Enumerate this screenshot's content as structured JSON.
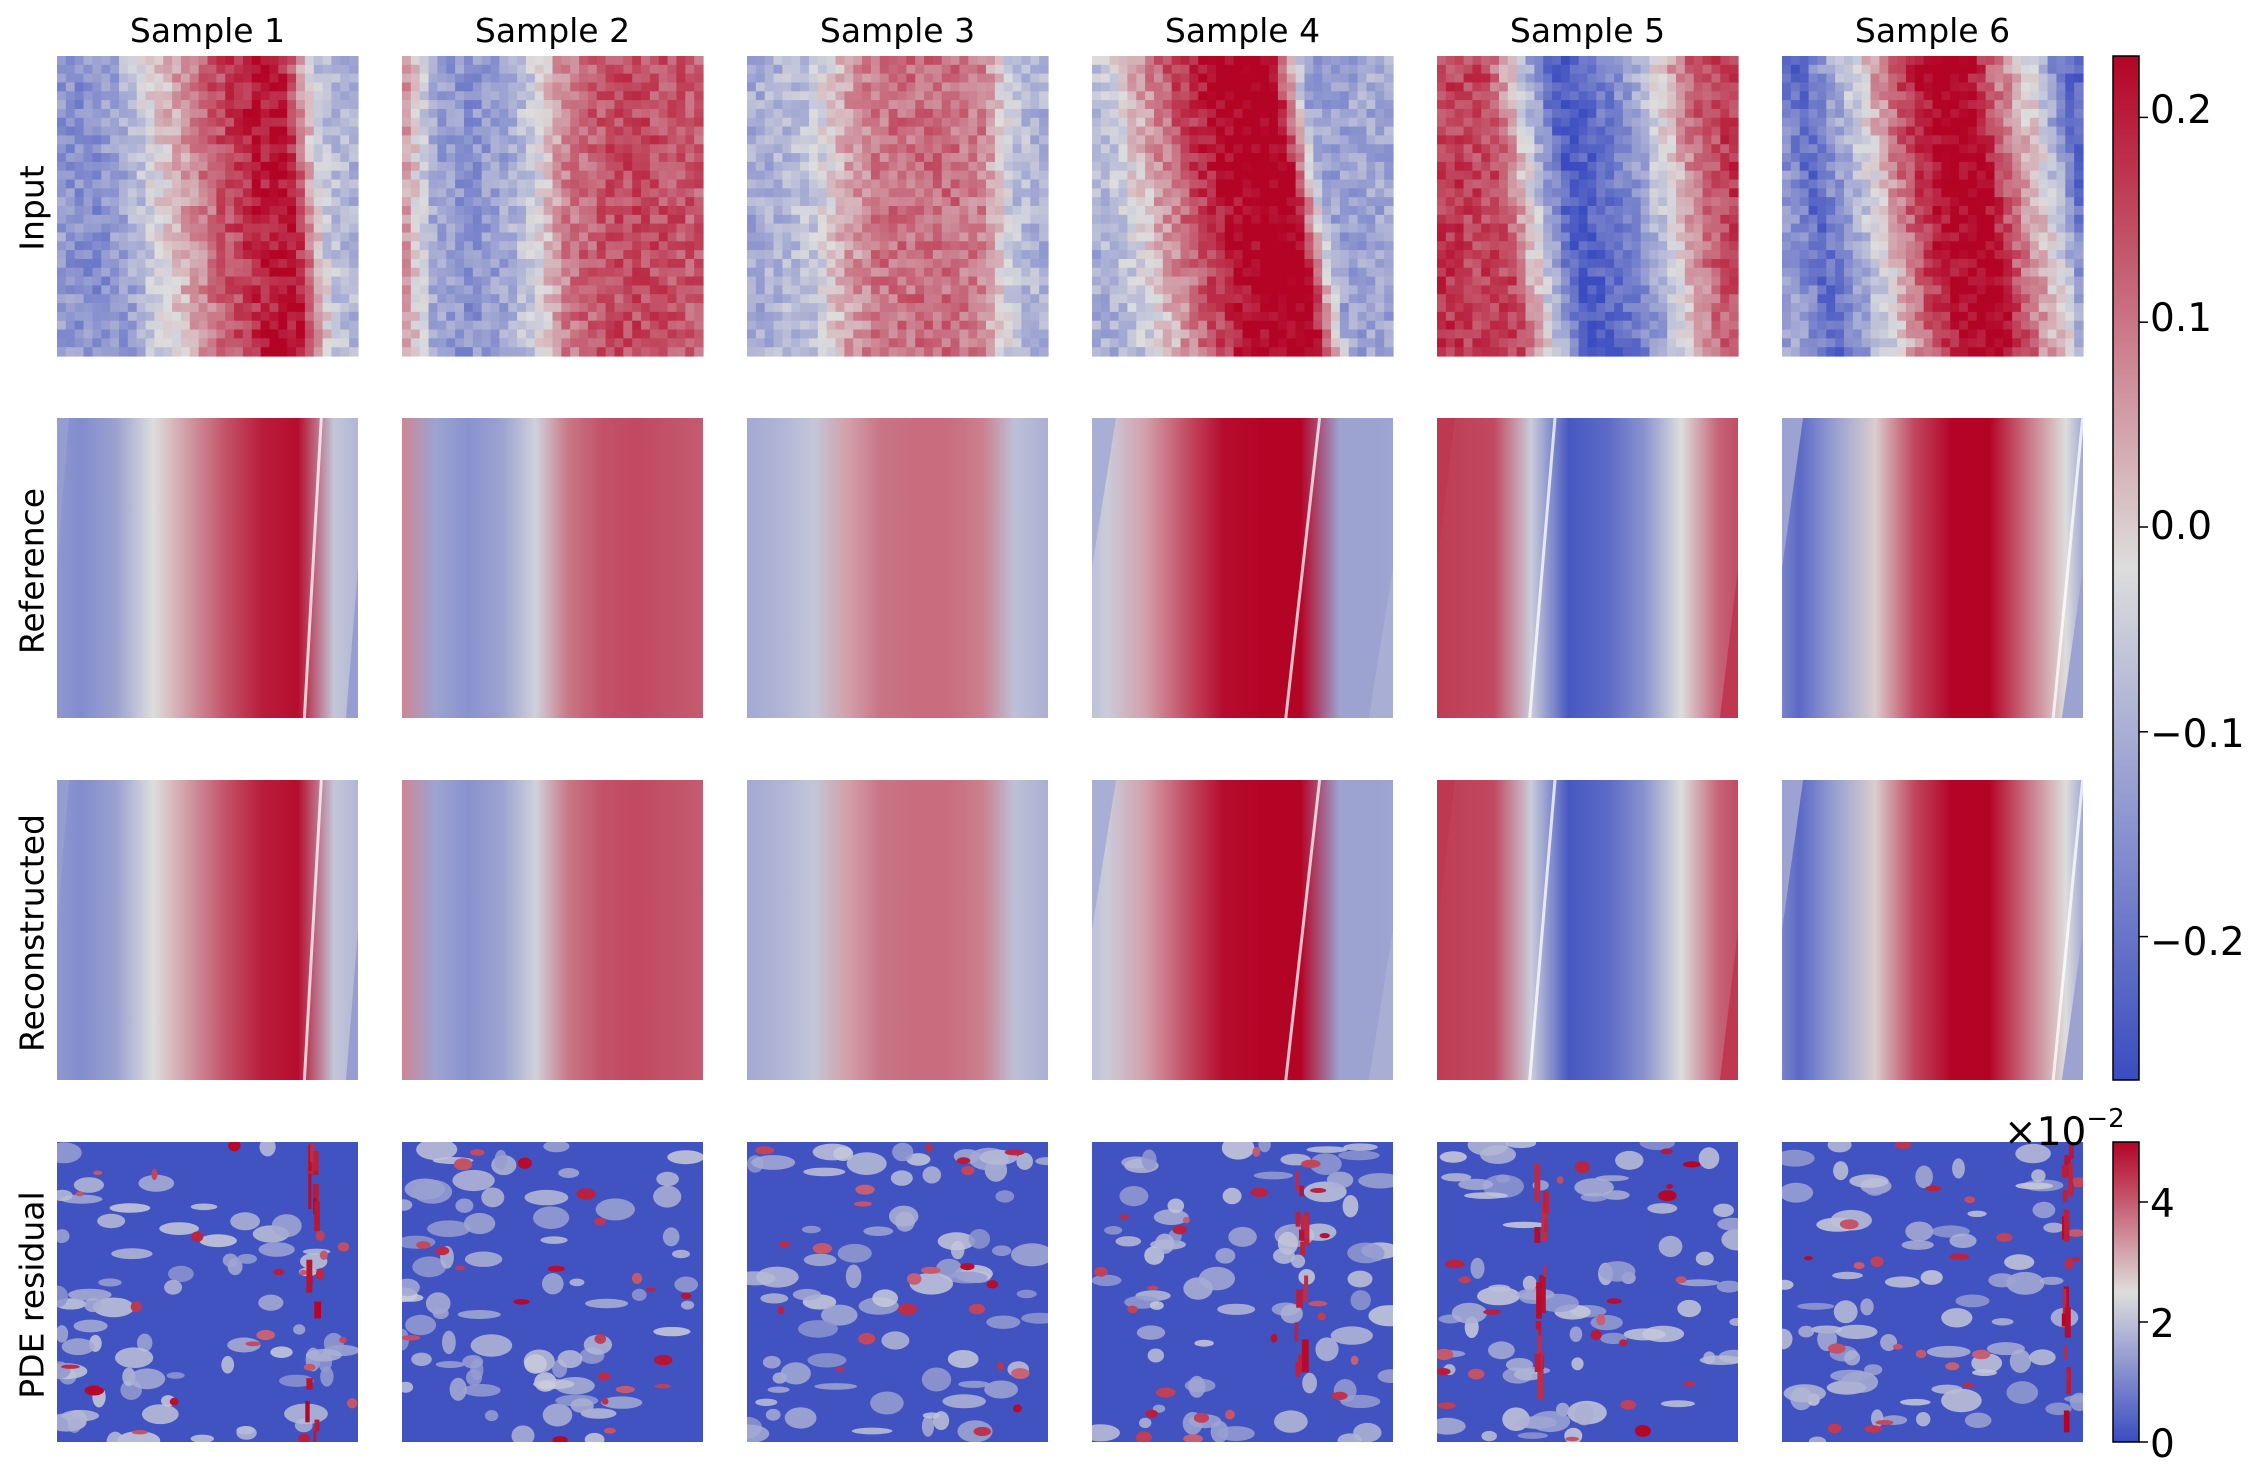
{
  "chart_data": {
    "type": "heatmap",
    "columns": [
      "Sample 1",
      "Sample 2",
      "Sample 3",
      "Sample 4",
      "Sample 5",
      "Sample 6"
    ],
    "rows": [
      "Input",
      "Reference",
      "Reconstructed",
      "PDE residual"
    ],
    "colormap": "coolwarm",
    "colors": {
      "low": "#3b4cc0",
      "mid": "#dddddd",
      "high": "#b40426"
    },
    "main_colorbar": {
      "range": [
        -0.27,
        0.23
      ],
      "ticks": [
        0.2,
        0.1,
        0.0,
        -0.1,
        -0.2
      ],
      "tick_labels": [
        "0.2",
        "0.1",
        "0.0",
        "−0.1",
        "−0.2"
      ]
    },
    "residual_colorbar": {
      "range": [
        0,
        5
      ],
      "ticks": [
        4,
        2,
        0
      ],
      "tick_labels": [
        "4",
        "2",
        "0"
      ],
      "multiplier_base": "×10",
      "multiplier_exp": "−2"
    },
    "samples": [
      {
        "profile": [
          -0.13,
          -0.16,
          -0.12,
          -0.02,
          0.06,
          0.14,
          0.2,
          0.22,
          -0.06,
          -0.1
        ],
        "shift": 0.08,
        "front": 0.85
      },
      {
        "profile": [
          0.08,
          -0.12,
          -0.15,
          -0.12,
          -0.04,
          0.1,
          0.14,
          0.15,
          0.14,
          0.13
        ],
        "shift": 0.0,
        "front": null
      },
      {
        "profile": [
          -0.11,
          -0.09,
          -0.06,
          0.05,
          0.1,
          0.11,
          0.11,
          0.09,
          -0.07,
          -0.1
        ],
        "shift": 0.0,
        "front": null
      },
      {
        "profile": [
          -0.1,
          -0.05,
          0.05,
          0.14,
          0.22,
          0.25,
          0.25,
          -0.12,
          -0.12,
          -0.11
        ],
        "shift": 0.16,
        "front": 0.7
      },
      {
        "profile": [
          0.17,
          0.16,
          0.15,
          -0.05,
          -0.25,
          -0.22,
          -0.15,
          -0.02,
          0.12,
          0.17
        ],
        "shift": 0.12,
        "front": 0.35
      },
      {
        "profile": [
          -0.12,
          -0.22,
          -0.12,
          0.0,
          0.15,
          0.23,
          0.25,
          0.1,
          -0.02,
          -0.22
        ],
        "shift": 0.14,
        "front": 0.95
      }
    ]
  },
  "column_titles": [
    "Sample 1",
    "Sample 2",
    "Sample 3",
    "Sample 4",
    "Sample 5",
    "Sample 6"
  ],
  "row_labels": [
    "Input",
    "Reference",
    "Reconstructed",
    "PDE residual"
  ]
}
